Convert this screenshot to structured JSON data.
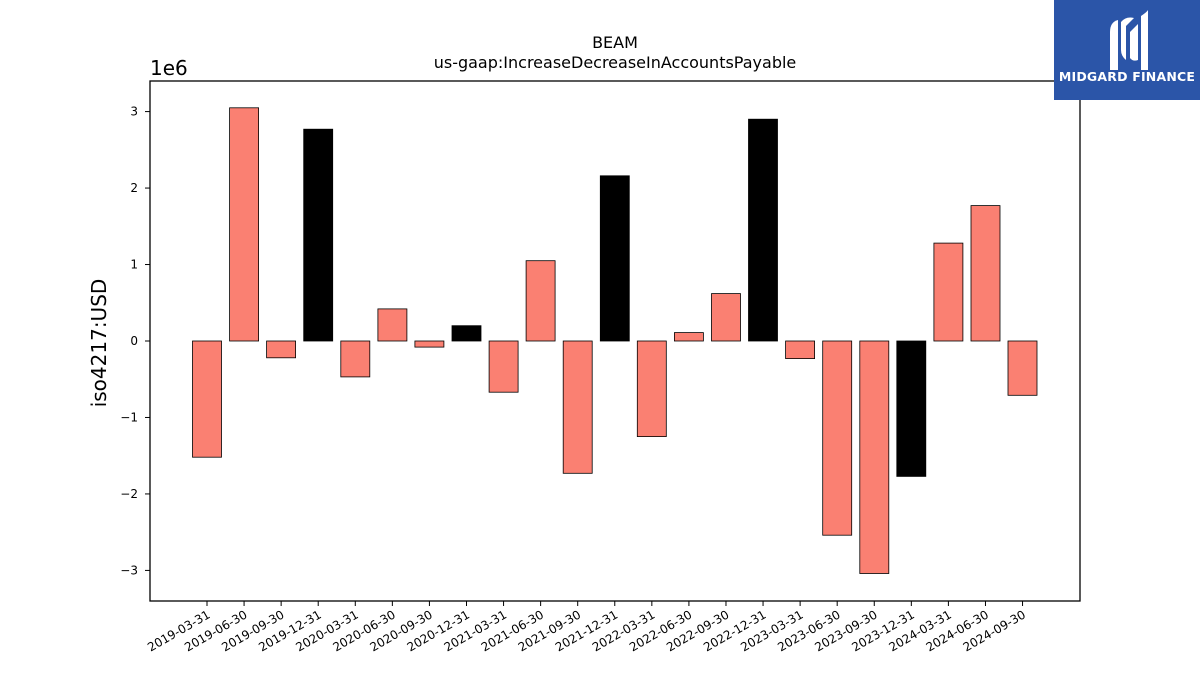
{
  "brand": {
    "name": "MIDGARD FINANCE",
    "bg_color": "#2b55a8",
    "icon": "midgard-logo-icon"
  },
  "chart_data": {
    "type": "bar",
    "title": "BEAM",
    "subtitle": "us-gaap:IncreaseDecreaseInAccountsPayable",
    "xlabel": "",
    "ylabel": "iso4217:USD",
    "y_scale_label": "1e6",
    "ylim": [
      -3.4,
      3.4
    ],
    "yticks": [
      -3,
      -2,
      -1,
      0,
      1,
      2,
      3
    ],
    "ytick_labels": [
      "−3",
      "−2",
      "−1",
      "0",
      "1",
      "2",
      "3"
    ],
    "grid": false,
    "colors": {
      "quarter": "#fa8072",
      "year_end": "#000000",
      "edge": "#000000"
    },
    "categories": [
      "2019-03-31",
      "2019-06-30",
      "2019-09-30",
      "2019-12-31",
      "2020-03-31",
      "2020-06-30",
      "2020-09-30",
      "2020-12-31",
      "2021-03-31",
      "2021-06-30",
      "2021-09-30",
      "2021-12-31",
      "2022-03-31",
      "2022-06-30",
      "2022-09-30",
      "2022-12-31",
      "2023-03-31",
      "2023-06-30",
      "2023-09-30",
      "2023-12-31",
      "2024-03-31",
      "2024-06-30",
      "2024-09-30"
    ],
    "values": [
      -1.52,
      3.05,
      -0.22,
      2.77,
      -0.47,
      0.42,
      -0.08,
      0.2,
      -0.67,
      1.05,
      -1.73,
      2.16,
      -1.25,
      0.11,
      0.62,
      2.9,
      -0.23,
      -2.54,
      -3.04,
      -1.77,
      1.28,
      1.77,
      -0.71
    ]
  }
}
